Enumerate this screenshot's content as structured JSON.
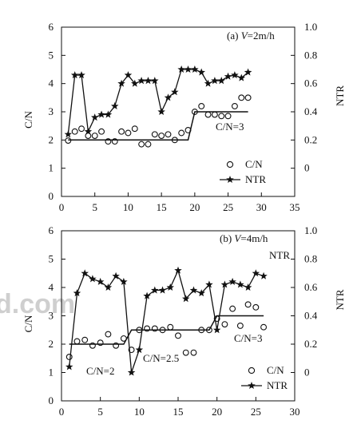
{
  "chart_data": [
    {
      "type": "scatter+line",
      "annotation": "(a) V=2m/h",
      "ylabel_left": "C/N",
      "ylabel_right": "NTR",
      "xlim": [
        0,
        35
      ],
      "xticks": [
        0,
        5,
        10,
        15,
        20,
        25,
        30,
        35
      ],
      "ylim_left": [
        0,
        6
      ],
      "yticks_left": [
        0,
        1,
        2,
        3,
        4,
        5,
        6
      ],
      "ylim_right": [
        -0.2,
        1.0
      ],
      "yticks_right": [
        0,
        0.2,
        0.4,
        0.6,
        0.8,
        1.0
      ],
      "yticks_right_labels": [
        "0",
        "0.2",
        "0.4",
        "0.6",
        "0.8",
        "1.0"
      ],
      "step_labels": [
        "C/N=3"
      ],
      "legend": {
        "position": "lower-right",
        "entries": [
          "C/N",
          "NTR"
        ]
      },
      "series": [
        {
          "name": "C/N",
          "marker": "circle",
          "axis": "left",
          "x": [
            1,
            2,
            3,
            4,
            5,
            6,
            7,
            8,
            9,
            10,
            11,
            12,
            13,
            14,
            15,
            16,
            17,
            18,
            19,
            20,
            21,
            22,
            23,
            24,
            25,
            26,
            27,
            28
          ],
          "y": [
            1.98,
            2.3,
            2.4,
            2.15,
            2.15,
            2.3,
            1.95,
            1.95,
            2.3,
            2.25,
            2.4,
            1.85,
            1.85,
            2.2,
            2.15,
            2.2,
            2.0,
            2.25,
            2.35,
            3.0,
            3.2,
            2.9,
            2.9,
            2.85,
            2.85,
            3.2,
            3.5,
            3.5
          ]
        },
        {
          "name": "NTR",
          "marker": "star",
          "axis": "right",
          "x": [
            1,
            2,
            3,
            4,
            5,
            6,
            7,
            8,
            9,
            10,
            11,
            12,
            13,
            14,
            15,
            16,
            17,
            18,
            19,
            20,
            21,
            22,
            23,
            24,
            25,
            26,
            27,
            28
          ],
          "y": [
            0.24,
            0.66,
            0.66,
            0.26,
            0.36,
            0.38,
            0.38,
            0.44,
            0.6,
            0.66,
            0.6,
            0.62,
            0.62,
            0.62,
            0.4,
            0.5,
            0.54,
            0.7,
            0.7,
            0.7,
            0.68,
            0.6,
            0.62,
            0.62,
            0.65,
            0.66,
            0.64,
            0.68
          ]
        },
        {
          "name": "C/N setpoint",
          "marker": "none",
          "axis": "left",
          "x": [
            1,
            19,
            20,
            28
          ],
          "y": [
            2,
            2,
            3,
            3
          ]
        }
      ]
    },
    {
      "type": "scatter+line",
      "annotation": "(b) V=4m/h",
      "ylabel_left": "C/N",
      "ylabel_right": "NTR",
      "xlim": [
        0,
        30
      ],
      "xticks": [
        0,
        5,
        10,
        15,
        20,
        25,
        30
      ],
      "ylim_left": [
        0,
        6
      ],
      "yticks_left": [
        0,
        1,
        2,
        3,
        4,
        5,
        6
      ],
      "ylim_right": [
        -0.2,
        1.0
      ],
      "yticks_right": [
        0,
        0.2,
        0.4,
        0.6,
        0.8,
        1.0
      ],
      "yticks_right_labels": [
        "0",
        "0.2",
        "0.4",
        "0.6",
        "0.8",
        "1.0"
      ],
      "step_labels": [
        "C/N=2",
        "C/N=2.5",
        "C/N=3"
      ],
      "series_label": "NTR",
      "legend": {
        "position": "lower-right",
        "entries": [
          "C/N",
          "NTR"
        ]
      },
      "series": [
        {
          "name": "C/N",
          "marker": "circle",
          "axis": "left",
          "x": [
            1,
            2,
            3,
            4,
            5,
            6,
            7,
            8,
            9,
            10,
            11,
            12,
            13,
            14,
            15,
            16,
            17,
            18,
            19,
            20,
            21,
            22,
            23,
            24,
            25,
            26
          ],
          "y": [
            1.55,
            2.1,
            2.15,
            1.95,
            2.05,
            2.35,
            1.95,
            2.2,
            1.8,
            2.5,
            2.55,
            2.55,
            2.5,
            2.6,
            2.3,
            1.7,
            1.7,
            2.5,
            2.5,
            2.9,
            2.7,
            3.25,
            2.65,
            3.4,
            3.3,
            2.6
          ]
        },
        {
          "name": "NTR",
          "marker": "star",
          "axis": "right",
          "x": [
            1,
            2,
            3,
            4,
            5,
            6,
            7,
            8,
            9,
            10,
            11,
            12,
            13,
            14,
            15,
            16,
            17,
            18,
            19,
            20,
            21,
            22,
            23,
            24,
            25,
            26
          ],
          "y": [
            0.04,
            0.56,
            0.7,
            0.66,
            0.64,
            0.6,
            0.68,
            0.64,
            0.0,
            0.16,
            0.54,
            0.58,
            0.58,
            0.6,
            0.72,
            0.52,
            0.58,
            0.56,
            0.62,
            0.3,
            0.62,
            0.64,
            0.62,
            0.6,
            0.7,
            0.68
          ]
        },
        {
          "name": "C/N setpoint",
          "marker": "none",
          "axis": "left",
          "x": [
            1,
            8,
            9,
            18,
            19,
            20,
            26
          ],
          "y": [
            2,
            2,
            2.5,
            2.5,
            2.5,
            3,
            3
          ]
        }
      ]
    }
  ]
}
